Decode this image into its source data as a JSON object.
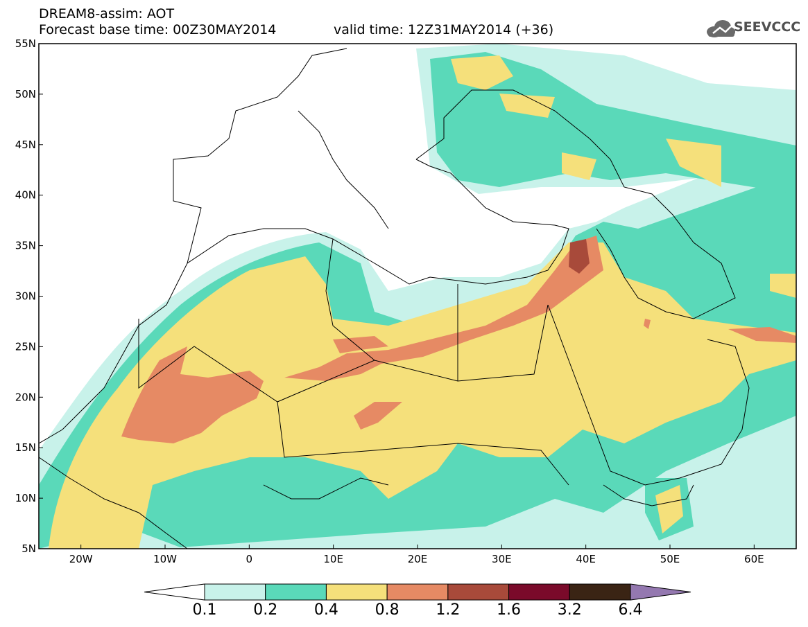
{
  "header": {
    "line1": "DREAM8-assim: AOT",
    "line2_base": "Forecast base time: 00Z30MAY2014",
    "line2_valid": "valid time: 12Z31MAY2014 (+36)"
  },
  "logo": {
    "icon": "cloud-logo-icon",
    "text": "SEEVCCC"
  },
  "map": {
    "lon_range": [
      -25,
      65
    ],
    "lat_range": [
      5,
      55
    ],
    "lon_ticks": [
      "20W",
      "10W",
      "0",
      "10E",
      "20E",
      "30E",
      "40E",
      "50E",
      "60E"
    ],
    "lat_ticks": [
      "55N",
      "50N",
      "45N",
      "40N",
      "35N",
      "30N",
      "25N",
      "20N",
      "15N",
      "10N",
      "5N"
    ]
  },
  "colorbar": {
    "labels": [
      "0.1",
      "0.2",
      "0.4",
      "0.8",
      "1.2",
      "1.6",
      "3.2",
      "6.4"
    ],
    "colors": [
      "#ffffff",
      "#c8f2ea",
      "#5ad9b9",
      "#f5e07b",
      "#e68a64",
      "#a84a3a",
      "#7a0a2a",
      "#3a2414",
      "#9478b0"
    ]
  }
}
